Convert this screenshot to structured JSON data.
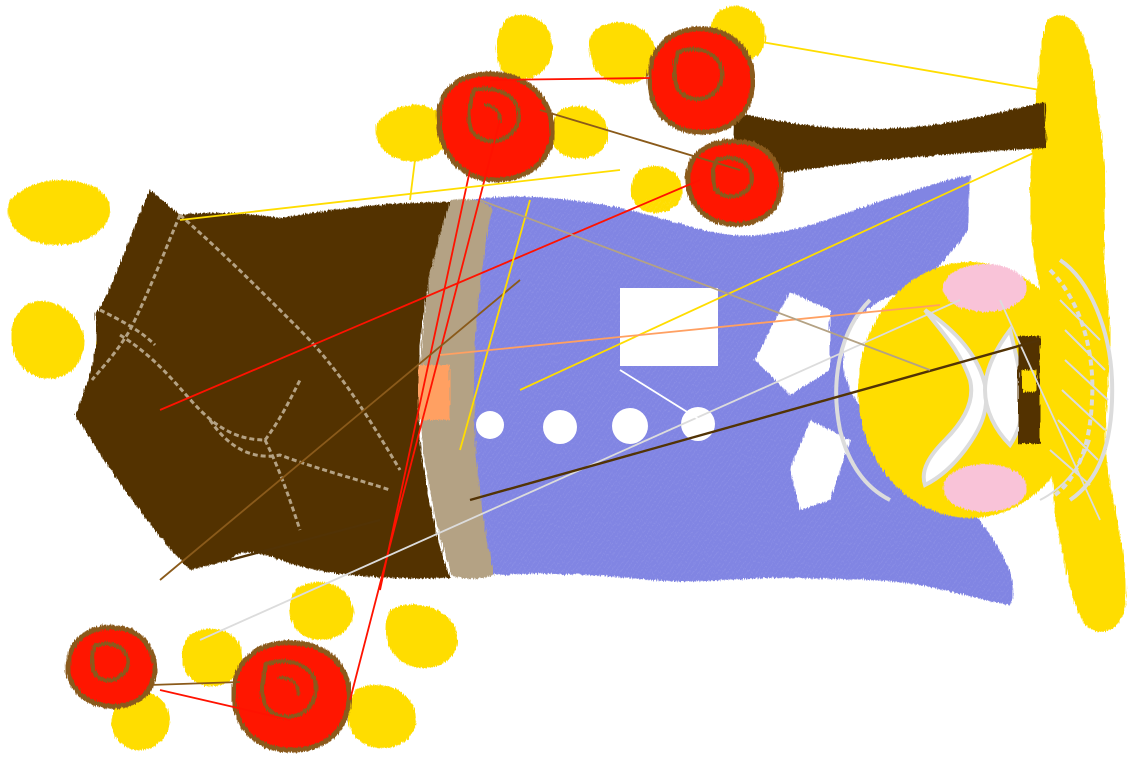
{
  "colors": {
    "background": "#ffffff",
    "brown": "#523305",
    "tan": "#b4a284",
    "periwinkle": "#8185e3",
    "gold": "#ffdd00",
    "red": "#ff1200",
    "rose_outline": "#8a5a1a",
    "light_gray": "#dcdcdc",
    "pink": "#f9c3d8",
    "peach": "#ffa062",
    "white": "#ffffff"
  },
  "icons": {
    "main": "embroidery-guitar-illustration",
    "flower": "rose-icon",
    "leaf": "leaf-icon"
  }
}
